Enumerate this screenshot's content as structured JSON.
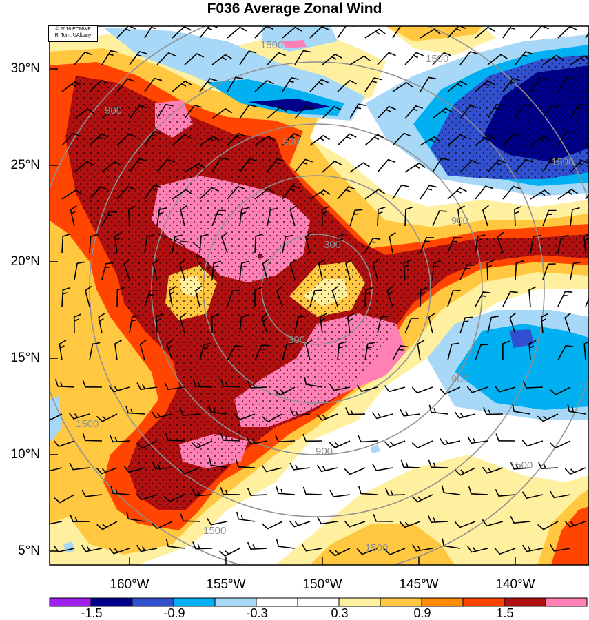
{
  "title": "F036 Average Zonal Wind",
  "copyright": {
    "line1": "© 2016 ECMWF",
    "line2": "R. Torn, UAlbany"
  },
  "latitude_labels": [
    "30°N",
    "25°N",
    "20°N",
    "15°N",
    "10°N",
    "5°N"
  ],
  "longitude_labels": [
    "160°W",
    "155°W",
    "150°W",
    "145°W",
    "140°W"
  ],
  "contour_labels": [
    "1500",
    "1500",
    "1500",
    "1500",
    "1500",
    "1500",
    "1500",
    "900",
    "900",
    "900",
    "900",
    "900",
    "300",
    "300"
  ],
  "colorbar": {
    "tick_labels": [
      "-1.5",
      "-0.9",
      "-0.3",
      "0.3",
      "0.9",
      "1.5"
    ],
    "colors": [
      "#a020f0",
      "#00008b",
      "#3050d0",
      "#00b0f0",
      "#a8d8f8",
      "#ffffff",
      "#ffffff",
      "#fff0a0",
      "#ffc840",
      "#ff8c00",
      "#ff4500",
      "#b01010",
      "#ff80b4"
    ]
  },
  "map_extent": {
    "lon_min": -164,
    "lon_max": -136,
    "lat_min": 4,
    "lat_max": 32
  }
}
